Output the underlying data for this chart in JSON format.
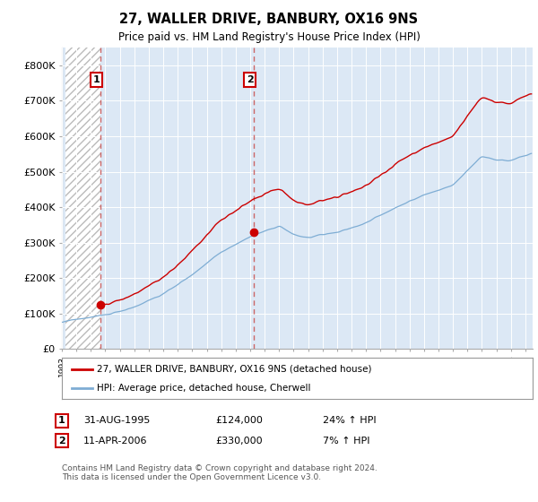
{
  "title": "27, WALLER DRIVE, BANBURY, OX16 9NS",
  "subtitle": "Price paid vs. HM Land Registry's House Price Index (HPI)",
  "ylim": [
    0,
    850000
  ],
  "yticks": [
    0,
    100000,
    200000,
    300000,
    400000,
    500000,
    600000,
    700000,
    800000
  ],
  "ytick_labels": [
    "£0",
    "£100K",
    "£200K",
    "£300K",
    "£400K",
    "£500K",
    "£600K",
    "£700K",
    "£800K"
  ],
  "sale1_date": 1995.667,
  "sale1_price": 124000,
  "sale1_label": "1",
  "sale2_date": 2006.278,
  "sale2_price": 330000,
  "sale2_label": "2",
  "line_color_property": "#cc0000",
  "line_color_hpi": "#7eadd4",
  "marker_color": "#cc0000",
  "dashed_line_color": "#cc6666",
  "background_color": "#ffffff",
  "plot_bg_color": "#dce8f5",
  "hatch_bg_color": "#ffffff",
  "legend_label1": "27, WALLER DRIVE, BANBURY, OX16 9NS (detached house)",
  "legend_label2": "HPI: Average price, detached house, Cherwell",
  "copyright_text": "Contains HM Land Registry data © Crown copyright and database right 2024.\nThis data is licensed under the Open Government Licence v3.0.",
  "xlim_start": 1993.25,
  "xlim_end": 2025.5,
  "hpi_seed": 42,
  "prop_seed": 99
}
